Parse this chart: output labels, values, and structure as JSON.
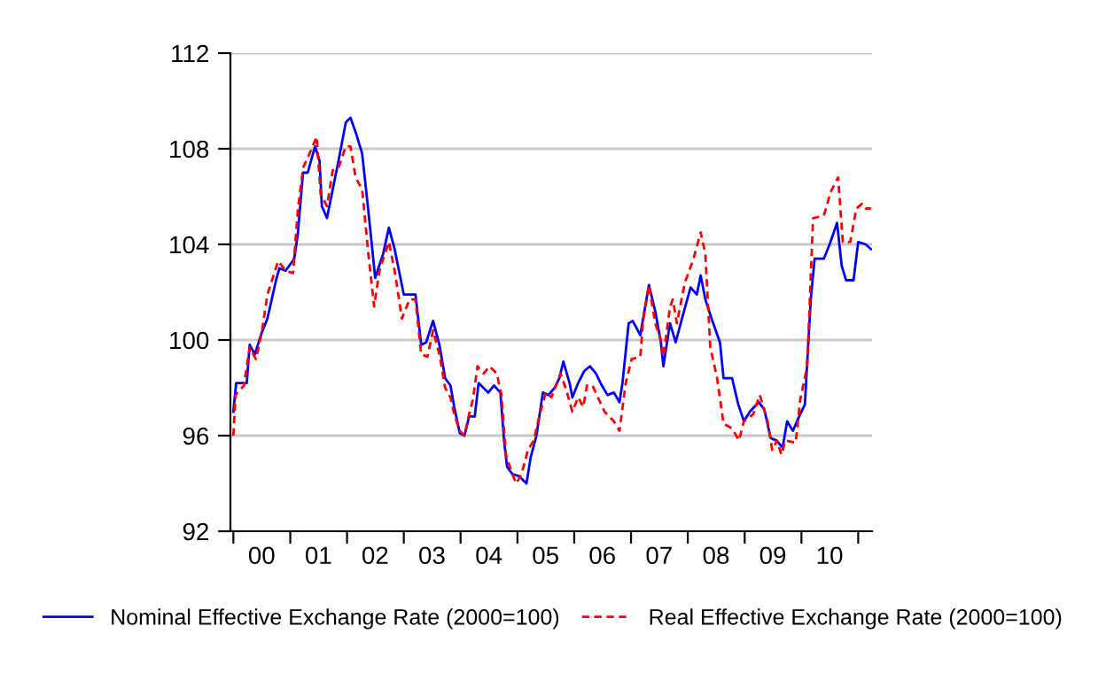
{
  "chart_data": {
    "type": "line",
    "xlim": [
      "1999-12-13",
      "2011-03-31"
    ],
    "ylim": [
      92,
      112
    ],
    "yticks": [
      92,
      96,
      100,
      104,
      108,
      112
    ],
    "xticks": [
      {
        "value": "2000",
        "label": null
      },
      {
        "value": "2001",
        "label": null
      },
      {
        "value": "2002",
        "label": null
      },
      {
        "value": "2003",
        "label": null
      },
      {
        "value": "2004",
        "label": null
      },
      {
        "value": "2005",
        "label": null
      },
      {
        "value": "2006",
        "label": null
      },
      {
        "value": "2007",
        "label": null
      },
      {
        "value": "2008",
        "label": null
      },
      {
        "value": "2009",
        "label": null
      },
      {
        "value": "2010",
        "label": null
      },
      {
        "value": "2011",
        "label": null
      },
      {
        "value": "2000-07-01",
        "label": "00"
      },
      {
        "value": "2001-07-01",
        "label": "01"
      },
      {
        "value": "2002-07-01",
        "label": "02"
      },
      {
        "value": "2003-07-01",
        "label": "03"
      },
      {
        "value": "2004-07-01",
        "label": "04"
      },
      {
        "value": "2005-07-01",
        "label": "05"
      },
      {
        "value": "2006-07-01",
        "label": "06"
      },
      {
        "value": "2007-07-01",
        "label": "07"
      },
      {
        "value": "2008-07-01",
        "label": "08"
      },
      {
        "value": "2009-07-01",
        "label": "09"
      },
      {
        "value": "2010-07-01",
        "label": "10"
      }
    ],
    "grid": "y",
    "legend": "bottom",
    "series": [
      {
        "name": "Nominal Effective Exchange Rate (2000=100)",
        "color": "#0000ff",
        "line_style": "solid",
        "x": [
          "2000-01-01",
          "2000-01-19",
          "2000-03-27",
          "2000-04-15",
          "2000-05-18",
          "2000-07-01",
          "2000-08-07",
          "2000-10-05",
          "2000-10-23",
          "2000-12-02",
          "2001-01-26",
          "2001-02-18",
          "2001-03-24",
          "2001-04-23",
          "2001-06-09",
          "2001-07-08",
          "2001-07-23",
          "2001-08-25",
          "2001-10-01",
          "2001-11-07",
          "2001-12-24",
          "2002-01-23",
          "2002-03-02",
          "2002-04-08",
          "2002-05-18",
          "2002-07-01",
          "2002-08-21",
          "2002-09-27",
          "2002-11-03",
          "2003-01-01",
          "2003-03-17",
          "2003-04-23",
          "2003-05-25",
          "2003-07-08",
          "2003-08-18",
          "2003-09-24",
          "2003-10-28",
          "2003-11-21",
          "2003-12-27",
          "2004-01-26",
          "2004-02-25",
          "2004-04-01",
          "2004-04-26",
          "2004-06-27",
          "2004-08-03",
          "2004-09-13",
          "2004-10-08",
          "2004-10-26",
          "2004-11-28",
          "2005-01-12",
          "2005-02-28",
          "2005-03-27",
          "2005-05-03",
          "2005-06-13",
          "2005-07-19",
          "2005-08-28",
          "2005-09-27",
          "2005-10-23",
          "2005-12-02",
          "2005-12-20",
          "2006-01-26",
          "2006-03-06",
          "2006-04-12",
          "2006-05-21",
          "2006-06-27",
          "2006-08-03",
          "2006-09-13",
          "2006-10-19",
          "2006-11-07",
          "2006-12-17",
          "2007-01-12",
          "2007-03-02",
          "2007-03-20",
          "2007-04-26",
          "2007-06-06",
          "2007-07-12",
          "2007-07-28",
          "2007-09-09",
          "2007-10-15",
          "2007-11-25",
          "2008-01-19",
          "2008-02-28",
          "2008-03-24",
          "2008-04-23",
          "2008-06-02",
          "2008-07-26",
          "2008-08-18",
          "2008-10-12",
          "2008-11-21",
          "2008-12-27",
          "2009-02-03",
          "2009-04-01",
          "2009-05-07",
          "2009-06-17",
          "2009-07-23",
          "2009-09-02",
          "2009-10-01",
          "2009-11-07",
          "2009-12-17",
          "2010-01-23",
          "2010-03-02",
          "2010-03-27",
          "2010-05-25",
          "2010-07-01",
          "2010-08-18",
          "2010-09-17",
          "2010-10-15",
          "2010-12-02",
          "2011-01-01",
          "2011-02-18",
          "2011-03-24"
        ],
        "values": [
          97.0,
          98.2,
          98.2,
          99.8,
          99.4,
          100.3,
          100.9,
          102.6,
          103.0,
          102.9,
          103.4,
          104.4,
          107.0,
          107.0,
          108.1,
          107.5,
          105.6,
          105.1,
          106.3,
          107.5,
          109.1,
          109.3,
          108.6,
          107.8,
          105.4,
          102.6,
          103.6,
          104.7,
          103.8,
          101.9,
          101.9,
          99.8,
          99.9,
          100.8,
          99.8,
          98.4,
          98.1,
          97.2,
          96.1,
          96.0,
          96.8,
          96.8,
          98.2,
          97.8,
          98.1,
          97.8,
          95.7,
          94.7,
          94.4,
          94.3,
          94.0,
          95.1,
          96.0,
          97.8,
          97.7,
          98.0,
          98.4,
          99.1,
          98.2,
          97.6,
          98.2,
          98.7,
          98.9,
          98.6,
          98.1,
          97.7,
          97.8,
          97.4,
          98.2,
          100.7,
          100.8,
          100.2,
          100.9,
          102.3,
          101.2,
          99.9,
          98.9,
          100.7,
          99.9,
          100.9,
          102.2,
          101.9,
          102.7,
          101.7,
          100.9,
          99.9,
          98.4,
          98.4,
          97.3,
          96.6,
          97.0,
          97.4,
          97.1,
          95.9,
          95.8,
          95.5,
          96.6,
          96.2,
          96.8,
          97.3,
          101.7,
          103.4,
          103.4,
          104.0,
          104.9,
          103.1,
          102.5,
          102.5,
          104.1,
          104.0,
          103.8
        ]
      },
      {
        "name": "Real Effective Exchange Rate (2000=100)",
        "color": "#ff0000",
        "line_style": "dashed",
        "x": [
          "2000-01-01",
          "2000-01-15",
          "2000-03-09",
          "2000-04-15",
          "2000-05-25",
          "2000-07-01",
          "2000-08-07",
          "2000-10-15",
          "2000-12-02",
          "2001-01-19",
          "2001-02-18",
          "2001-03-24",
          "2001-04-28",
          "2001-06-20",
          "2001-07-15",
          "2001-08-25",
          "2001-10-01",
          "2001-11-07",
          "2001-12-24",
          "2002-01-23",
          "2002-02-25",
          "2002-04-08",
          "2002-05-18",
          "2002-06-24",
          "2002-07-28",
          "2002-09-27",
          "2002-11-03",
          "2002-12-20",
          "2003-02-07",
          "2003-03-17",
          "2003-04-23",
          "2003-06-02",
          "2003-07-08",
          "2003-08-18",
          "2003-09-24",
          "2003-10-28",
          "2003-11-21",
          "2003-12-27",
          "2004-01-26",
          "2004-02-25",
          "2004-03-20",
          "2004-04-19",
          "2004-05-28",
          "2004-07-05",
          "2004-08-21",
          "2004-09-20",
          "2004-10-19",
          "2004-11-28",
          "2004-12-24",
          "2005-01-28",
          "2005-03-09",
          "2005-04-15",
          "2005-05-25",
          "2005-07-01",
          "2005-08-07",
          "2005-10-05",
          "2005-11-11",
          "2005-12-20",
          "2006-01-26",
          "2006-02-28",
          "2006-03-24",
          "2006-04-28",
          "2006-06-09",
          "2006-07-15",
          "2006-09-13",
          "2006-10-19",
          "2006-11-28",
          "2007-01-05",
          "2007-03-02",
          "2007-03-20",
          "2007-04-26",
          "2007-06-06",
          "2007-07-12",
          "2007-07-28",
          "2007-09-09",
          "2007-09-27",
          "2007-10-23",
          "2007-12-13",
          "2008-02-07",
          "2008-03-24",
          "2008-04-23",
          "2008-05-25",
          "2008-07-08",
          "2008-08-18",
          "2008-10-12",
          "2008-11-25",
          "2008-12-27",
          "2009-02-25",
          "2009-04-08",
          "2009-05-28",
          "2009-06-27",
          "2009-07-28",
          "2009-08-25",
          "2009-09-20",
          "2009-11-25",
          "2009-12-24",
          "2010-02-07",
          "2010-03-17",
          "2010-05-25",
          "2010-07-08",
          "2010-08-25",
          "2010-09-24",
          "2010-11-11",
          "2010-12-20",
          "2011-01-26",
          "2011-02-18",
          "2011-03-24"
        ],
        "values": [
          96.0,
          97.7,
          98.1,
          99.7,
          99.2,
          100.3,
          101.9,
          103.3,
          102.9,
          102.8,
          105.4,
          107.2,
          107.7,
          108.5,
          106.1,
          105.6,
          107.1,
          107.2,
          108.1,
          108.1,
          106.8,
          106.3,
          103.6,
          101.4,
          102.9,
          104.1,
          102.9,
          100.9,
          101.7,
          101.7,
          99.4,
          99.3,
          100.4,
          99.4,
          98.0,
          97.6,
          96.9,
          96.2,
          96.0,
          96.9,
          97.5,
          98.9,
          98.6,
          98.9,
          98.6,
          97.7,
          95.2,
          94.4,
          94.0,
          94.4,
          95.4,
          95.8,
          96.9,
          97.8,
          97.6,
          98.6,
          97.9,
          97.0,
          97.6,
          97.2,
          98.1,
          98.1,
          97.5,
          97.0,
          96.6,
          96.2,
          98.2,
          99.2,
          99.3,
          100.8,
          102.3,
          100.7,
          100.0,
          99.3,
          101.4,
          101.7,
          100.7,
          102.4,
          103.4,
          104.5,
          103.6,
          99.7,
          98.4,
          96.5,
          96.3,
          95.8,
          96.6,
          96.9,
          97.7,
          96.6,
          95.4,
          95.8,
          95.2,
          95.8,
          95.7,
          97.5,
          98.9,
          105.1,
          105.2,
          106.2,
          106.8,
          104.1,
          104.1,
          105.5,
          105.7,
          105.5,
          105.5
        ]
      }
    ]
  }
}
